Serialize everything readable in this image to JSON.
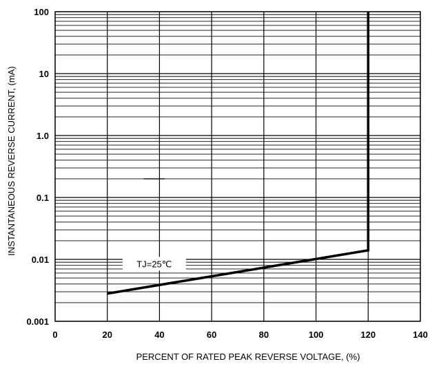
{
  "chart_data": {
    "type": "line",
    "xlabel": "PERCENT OF RATED PEAK REVERSE VOLTAGE, (%)",
    "ylabel": "INSTANTANEOUS  REVERSE CURRENT, (mA)",
    "xlim": [
      0,
      140
    ],
    "ylim": [
      0.001,
      100
    ],
    "y_scale": "log",
    "grid": true,
    "x_ticks": [
      {
        "value": 0,
        "label": "0"
      },
      {
        "value": 20,
        "label": "20"
      },
      {
        "value": 40,
        "label": "40"
      },
      {
        "value": 60,
        "label": "60"
      },
      {
        "value": 80,
        "label": "80"
      },
      {
        "value": 100,
        "label": "100"
      },
      {
        "value": 120,
        "label": "120"
      },
      {
        "value": 140,
        "label": "140"
      }
    ],
    "y_ticks": [
      {
        "value": 0.001,
        "label": "0.001"
      },
      {
        "value": 0.01,
        "label": "0.01"
      },
      {
        "value": 0.1,
        "label": "0.1"
      },
      {
        "value": 1,
        "label": "1.0"
      },
      {
        "value": 10,
        "label": "10"
      },
      {
        "value": 100,
        "label": "100"
      }
    ],
    "series": [
      {
        "x": [
          20,
          120,
          120
        ],
        "y": [
          0.0028,
          0.014,
          100
        ]
      }
    ],
    "annotations": [
      {
        "text": "TJ=25℃",
        "x": 38,
        "y": 0.0085
      }
    ],
    "stray_marks": [
      {
        "x1": 34,
        "x2": 42,
        "y": 0.2
      }
    ]
  }
}
